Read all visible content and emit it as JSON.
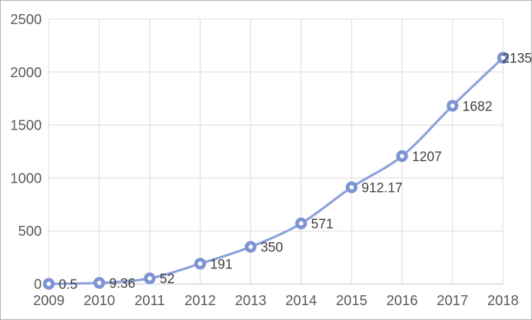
{
  "chart_data": {
    "type": "line",
    "title": "",
    "xlabel": "",
    "ylabel": "",
    "categories": [
      "2009",
      "2010",
      "2011",
      "2012",
      "2013",
      "2014",
      "2015",
      "2016",
      "2017",
      "2018"
    ],
    "values": [
      0.5,
      9.36,
      52,
      191,
      350,
      571,
      912.17,
      1207,
      1682,
      2135
    ],
    "data_labels": [
      "0.5",
      "9.36",
      "52",
      "191",
      "350",
      "571",
      "912.17",
      "1207",
      "1682",
      "2135"
    ],
    "ylim": [
      0,
      2500
    ],
    "y_ticks": [
      0,
      500,
      1000,
      1500,
      2000,
      2500
    ],
    "grid": true,
    "smooth_line": true,
    "legend_position": "none",
    "marker_style": "circle-donut",
    "colors": {
      "line": "#8DA2DC",
      "marker": "#7D93D2",
      "marker_center": "#FFFFFF",
      "gridline": "#D9D9D9",
      "axis_line": "#BFBFBF",
      "axis_text": "#595959",
      "data_label_text": "#404040",
      "frame_border": "#ABABAB",
      "background": "#FFFFFF"
    }
  }
}
